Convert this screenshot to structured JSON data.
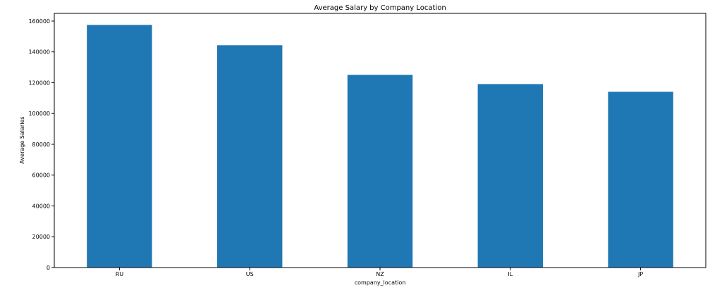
{
  "chart_data": {
    "type": "bar",
    "title": "Average Salary by Company Location",
    "xlabel": "company_location",
    "ylabel": "Average Salaries",
    "categories": [
      "RU",
      "US",
      "NZ",
      "IL",
      "JP"
    ],
    "values": [
      157500,
      144300,
      125100,
      119100,
      114100
    ],
    "ylim": [
      0,
      165000
    ],
    "yticks": [
      0,
      20000,
      40000,
      60000,
      80000,
      100000,
      120000,
      140000,
      160000
    ],
    "grid": false,
    "bar_color": "#1f77b4"
  }
}
